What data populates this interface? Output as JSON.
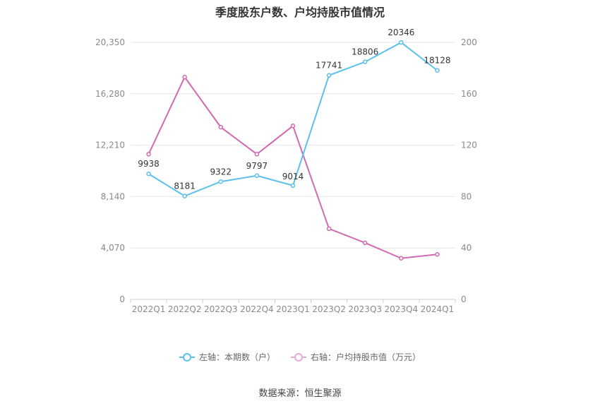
{
  "title": "季度股东户数、户均持股市值情况",
  "source": "数据来源：恒生聚源",
  "chart_data": {
    "type": "line",
    "categories": [
      "2022Q1",
      "2022Q2",
      "2022Q3",
      "2022Q4",
      "2023Q1",
      "2023Q2",
      "2023Q3",
      "2023Q4",
      "2024Q1"
    ],
    "left_axis": {
      "ticks": [
        "0",
        "4,070",
        "8,140",
        "12,210",
        "16,280",
        "20,350"
      ],
      "min": 0,
      "max": 20350
    },
    "right_axis": {
      "ticks": [
        "0",
        "40",
        "80",
        "120",
        "160",
        "200"
      ],
      "min": 0,
      "max": 200
    },
    "grid": true,
    "legend_position": "bottom",
    "series": [
      {
        "name": "左轴：本期数（户）",
        "axis": "left",
        "color": "#5bc0eb",
        "values": [
          9938,
          8181,
          9322,
          9797,
          9014,
          17741,
          18806,
          20346,
          18128
        ],
        "labels": [
          "9938",
          "8181",
          "9322",
          "9797",
          "9014",
          "17741",
          "18806",
          "20346",
          "18128"
        ]
      },
      {
        "name": "右轴：户均持股市值（万元）",
        "axis": "right",
        "color": "#d16aae",
        "values": [
          113,
          173,
          134,
          113,
          135,
          55,
          44,
          32,
          35
        ]
      }
    ]
  }
}
